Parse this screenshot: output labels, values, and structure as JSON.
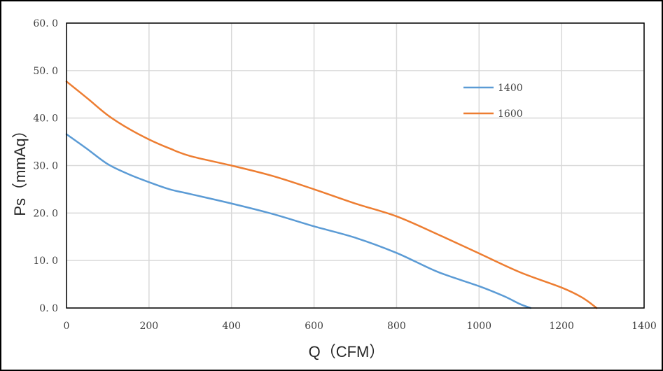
{
  "chart_data": {
    "type": "line",
    "title": "",
    "xlabel": "Q（CFM）",
    "ylabel": "Ps（mmAq）",
    "xlim": [
      0,
      1400
    ],
    "ylim": [
      0,
      60
    ],
    "x_ticks": [
      "0",
      "200",
      "400",
      "600",
      "800",
      "1000",
      "1200",
      "1400"
    ],
    "y_ticks": [
      "0. 0",
      "10. 0",
      "20. 0",
      "30. 0",
      "40. 0",
      "50. 0",
      "60. 0"
    ],
    "grid": true,
    "legend_position": "top-right",
    "series": [
      {
        "name": "1400",
        "color": "#5B9BD5",
        "points": [
          [
            0,
            36.6
          ],
          [
            50,
            33.5
          ],
          [
            100,
            30.3
          ],
          [
            150,
            28.2
          ],
          [
            200,
            26.5
          ],
          [
            250,
            25.0
          ],
          [
            300,
            24.0
          ],
          [
            400,
            22.0
          ],
          [
            500,
            19.8
          ],
          [
            600,
            17.2
          ],
          [
            700,
            14.8
          ],
          [
            800,
            11.6
          ],
          [
            900,
            7.6
          ],
          [
            1000,
            4.6
          ],
          [
            1060,
            2.5
          ],
          [
            1100,
            0.8
          ],
          [
            1125,
            0
          ]
        ]
      },
      {
        "name": "1600",
        "color": "#ED7D31",
        "points": [
          [
            0,
            47.7
          ],
          [
            50,
            44.2
          ],
          [
            100,
            40.6
          ],
          [
            150,
            37.8
          ],
          [
            200,
            35.5
          ],
          [
            250,
            33.6
          ],
          [
            300,
            32.0
          ],
          [
            400,
            30.0
          ],
          [
            500,
            27.8
          ],
          [
            600,
            25.0
          ],
          [
            700,
            22.0
          ],
          [
            800,
            19.3
          ],
          [
            900,
            15.5
          ],
          [
            1000,
            11.5
          ],
          [
            1100,
            7.5
          ],
          [
            1200,
            4.3
          ],
          [
            1250,
            2.2
          ],
          [
            1285,
            0
          ]
        ]
      }
    ]
  }
}
